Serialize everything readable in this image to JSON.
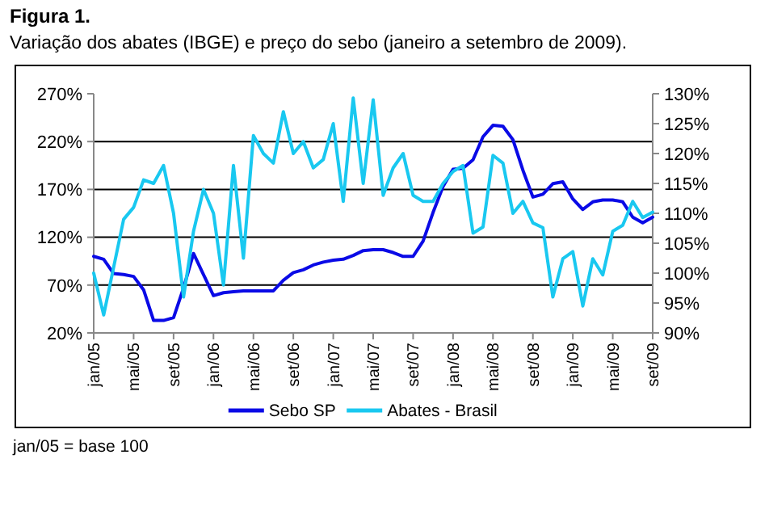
{
  "chart_data": {
    "type": "line",
    "title": "Figura 1.",
    "subtitle": "Variação dos abates (IBGE) e preço do sebo (janeiro a setembro de 2009).",
    "categories": [
      "jan/05",
      null,
      null,
      null,
      "mai/05",
      null,
      null,
      null,
      "set/05",
      null,
      null,
      null,
      "jan/06",
      null,
      null,
      null,
      "mai/06",
      null,
      null,
      null,
      "set/06",
      null,
      null,
      null,
      "jan/07",
      null,
      null,
      null,
      "mai/07",
      null,
      null,
      null,
      "set/07",
      null,
      null,
      null,
      "jan/08",
      null,
      null,
      null,
      "mai/08",
      null,
      null,
      null,
      "set/08",
      null,
      null,
      null,
      "jan/09",
      null,
      null,
      null,
      "mai/09",
      null,
      null,
      null,
      "set/09"
    ],
    "series": [
      {
        "name": "Sebo SP",
        "color": "#0a0ae6",
        "values": [
          100,
          97,
          82,
          81,
          79,
          65,
          33,
          33,
          36,
          67,
          103,
          81,
          59,
          62,
          63,
          64,
          64,
          64,
          64,
          75,
          83,
          86,
          91,
          94,
          96,
          97,
          101,
          106,
          107,
          107,
          104,
          100,
          100,
          116,
          146,
          173,
          191,
          192,
          201,
          225,
          237,
          236,
          222,
          190,
          162,
          165,
          176,
          178,
          160,
          149,
          157,
          159,
          159,
          157,
          141,
          135,
          141
        ]
      },
      {
        "name": "Abates - Brasil",
        "color": "#19c8f0",
        "axis": "y2",
        "values": [
          100,
          93,
          101,
          109,
          111,
          115.6,
          115,
          118,
          110,
          96,
          107,
          114,
          110,
          98,
          118,
          102.5,
          123,
          120,
          118.4,
          127,
          120,
          122,
          117.6,
          119,
          125,
          112,
          129.3,
          115,
          129,
          113,
          117.6,
          120,
          113,
          112,
          112,
          115,
          117,
          118,
          106.7,
          107.7,
          119.7,
          118.4,
          110,
          112,
          108.4,
          107.6,
          96,
          102.4,
          103.6,
          94.5,
          102.4,
          99.7,
          107,
          108,
          112,
          109.3,
          110.2
        ]
      }
    ],
    "ylim": [
      20,
      270
    ],
    "yticks": [
      {
        "value": 20,
        "label": "20%"
      },
      {
        "value": 70,
        "label": "70%"
      },
      {
        "value": 120,
        "label": "120%"
      },
      {
        "value": 170,
        "label": "170%"
      },
      {
        "value": 220,
        "label": "220%"
      },
      {
        "value": 270,
        "label": "270%"
      }
    ],
    "y2lim": [
      90,
      130
    ],
    "y2ticks": [
      {
        "value": 90,
        "label": "90%"
      },
      {
        "value": 95,
        "label": "95%"
      },
      {
        "value": 100,
        "label": "100%"
      },
      {
        "value": 105,
        "label": "105%"
      },
      {
        "value": 110,
        "label": "110%"
      },
      {
        "value": 115,
        "label": "115%"
      },
      {
        "value": 120,
        "label": "120%"
      },
      {
        "value": 125,
        "label": "125%"
      },
      {
        "value": 130,
        "label": "130%"
      }
    ],
    "grid": "y",
    "legend": "bottom",
    "marker": "none",
    "line_style": "solid",
    "annotations": [
      "jan/05 = base 100"
    ]
  }
}
